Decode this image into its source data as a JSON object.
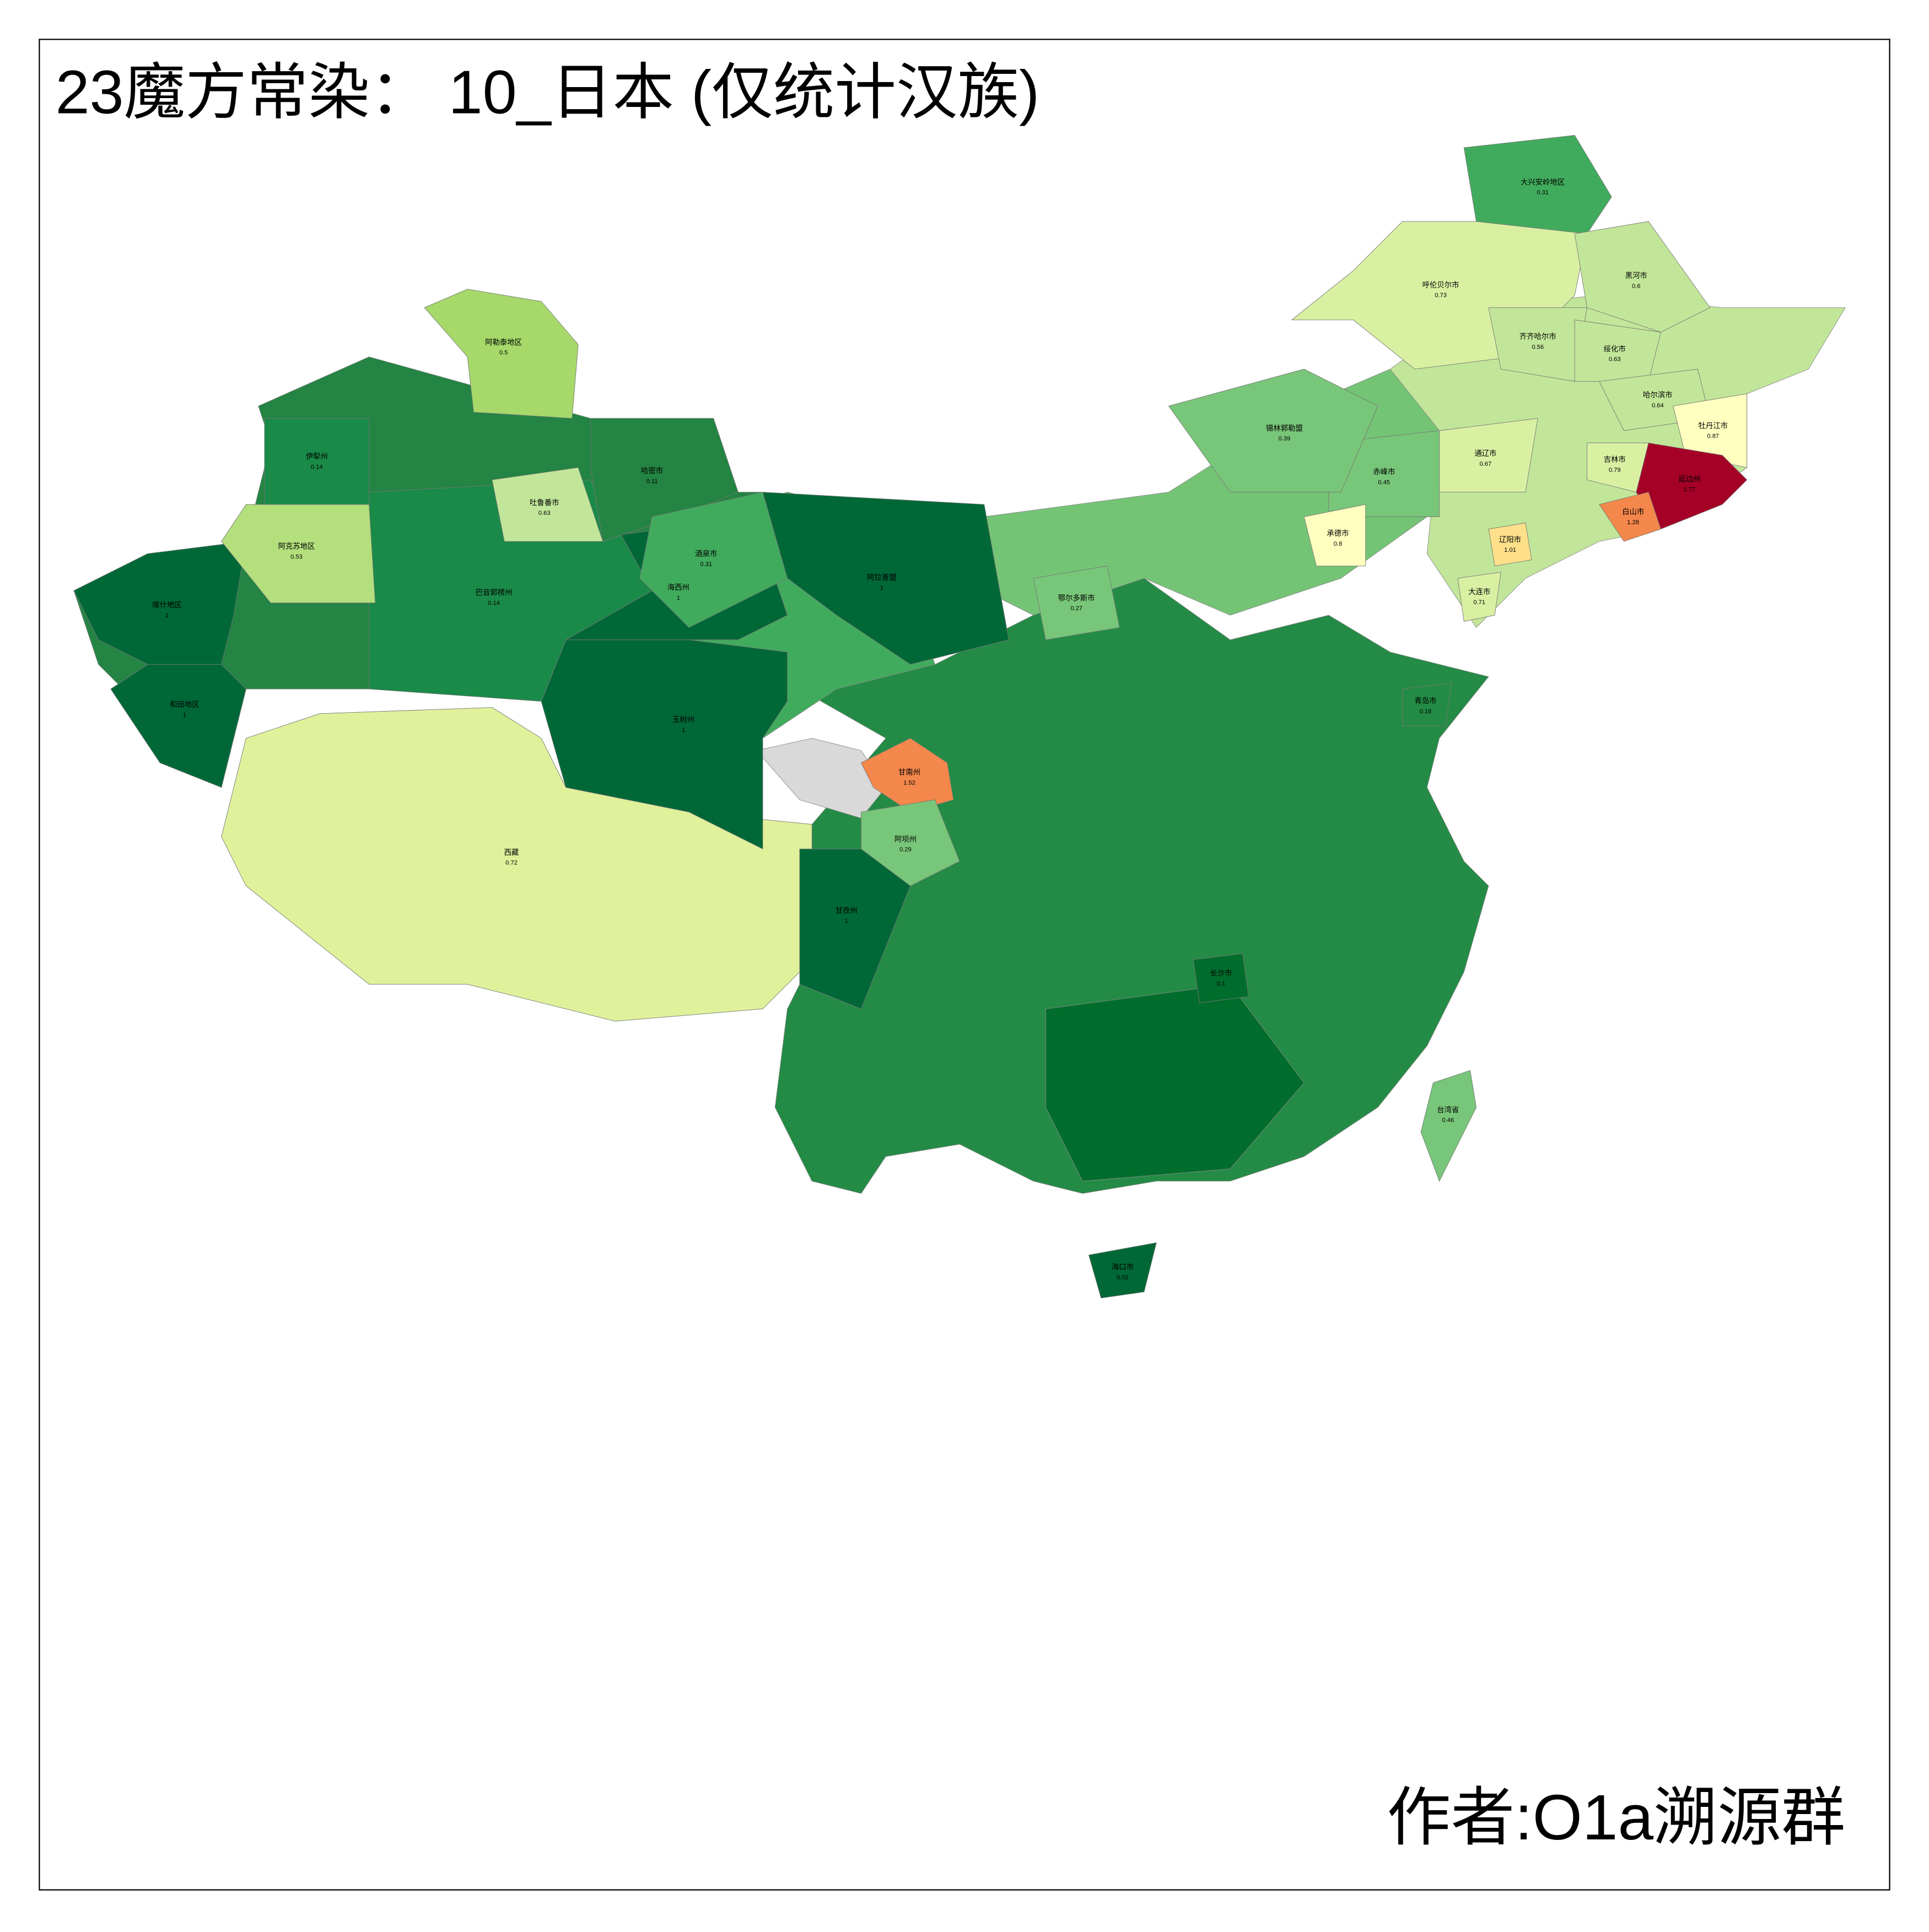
{
  "title": "23魔方常染： 10_日本 (仅统计汉族)",
  "author": "作者:O1a溯源群",
  "map": {
    "regions": [
      {
        "name": "西藏",
        "value": 0.72,
        "color": "#dff19b"
      },
      {
        "name": "玉树州",
        "value": 1,
        "color": "#006837"
      },
      {
        "name": "海西州",
        "value": 1,
        "color": "#006837"
      },
      {
        "name": "喀什地区",
        "value": 1,
        "color": "#006837"
      },
      {
        "name": "和田地区",
        "value": 1,
        "color": "#006837"
      },
      {
        "name": "巴音郭楞州",
        "value": 0.14,
        "color": "#1a8a48"
      },
      {
        "name": "阿克苏地区",
        "value": 0.53,
        "color": "#b3df7c"
      },
      {
        "name": "阿勒泰地区",
        "value": 0.5,
        "color": "#a6d96a"
      },
      {
        "name": "吐鲁番市",
        "value": 0.63,
        "color": "#c2e699"
      },
      {
        "name": "哈密市",
        "value": 0.11,
        "color": "#238443"
      },
      {
        "name": "伊犁州",
        "value": 0.14,
        "color": "#1a8a48"
      },
      {
        "name": "酒泉市",
        "value": 0.31,
        "color": "#41ab5d"
      },
      {
        "name": "阿拉善盟",
        "value": 1,
        "color": "#006837"
      },
      {
        "name": "甘南州",
        "value": 1.52,
        "color": "#f4874b"
      },
      {
        "name": "阿坝州",
        "value": 0.29,
        "color": "#78c679"
      },
      {
        "name": "甘孜州",
        "value": 1,
        "color": "#006837"
      },
      {
        "name": "大兴安岭地区",
        "value": 0.31,
        "color": "#41ab5d"
      },
      {
        "name": "呼伦贝尔市",
        "value": 0.73,
        "color": "#d9f0a3"
      },
      {
        "name": "黑河市",
        "value": 0.6,
        "color": "#c2e699"
      },
      {
        "name": "齐齐哈尔市",
        "value": 0.56,
        "color": "#c2e699"
      },
      {
        "name": "绥化市",
        "value": 0.63,
        "color": "#c2e699"
      },
      {
        "name": "哈尔滨市",
        "value": 0.64,
        "color": "#c2e699"
      },
      {
        "name": "牡丹江市",
        "value": 0.87,
        "color": "#ffffbf"
      },
      {
        "name": "延边州",
        "value": 1.77,
        "color": "#a50026"
      },
      {
        "name": "白山市",
        "value": 1.28,
        "color": "#f4874b"
      },
      {
        "name": "吉林市",
        "value": 0.79,
        "color": "#d9f0a3"
      },
      {
        "name": "通辽市",
        "value": 0.67,
        "color": "#d9f0a3"
      },
      {
        "name": "赤峰市",
        "value": 0.45,
        "color": "#78c679"
      },
      {
        "name": "锡林郭勒盟",
        "value": 0.39,
        "color": "#78c679"
      },
      {
        "name": "承德市",
        "value": 0.8,
        "color": "#ffffbf"
      },
      {
        "name": "辽阳市",
        "value": 1.01,
        "color": "#fee08b"
      },
      {
        "name": "大连市",
        "value": 0.71,
        "color": "#d9f0a3"
      },
      {
        "name": "台湾省",
        "value": 0.46,
        "color": "#78c679"
      },
      {
        "name": "海口市",
        "value": 0.02,
        "color": "#006837"
      },
      {
        "name": "鄂尔多斯市",
        "value": 0.27,
        "color": "#78c679"
      },
      {
        "name": "长沙市",
        "value": 0.1,
        "color": "#006d2c"
      },
      {
        "name": "青岛市",
        "value": 0.16,
        "color": "#238b45"
      }
    ]
  }
}
